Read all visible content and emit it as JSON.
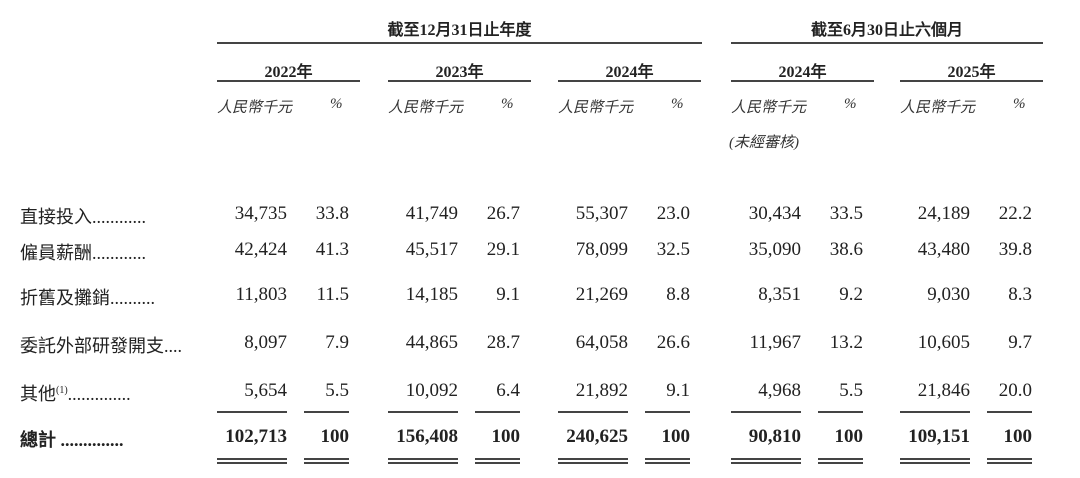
{
  "headers": {
    "group_annual": "截至12月31日止年度",
    "group_half": "截至6月30日止六個月",
    "years": [
      "2022年",
      "2023年",
      "2024年",
      "2024年",
      "2025年"
    ],
    "unit_rmb": "人民幣千元",
    "unit_pct": "%",
    "unaudited": "(未經審核)"
  },
  "rows": [
    {
      "label": "直接投入",
      "dots": "............",
      "values": [
        "34,735",
        "33.8",
        "41,749",
        "26.7",
        "55,307",
        "23.0",
        "30,434",
        "33.5",
        "24,189",
        "22.2"
      ]
    },
    {
      "label": "僱員薪酬",
      "dots": "............",
      "values": [
        "42,424",
        "41.3",
        "45,517",
        "29.1",
        "78,099",
        "32.5",
        "35,090",
        "38.6",
        "43,480",
        "39.8"
      ]
    },
    {
      "label": "折舊及攤銷",
      "dots": "..........",
      "values": [
        "11,803",
        "11.5",
        "14,185",
        "9.1",
        "21,269",
        "8.8",
        "8,351",
        "9.2",
        "9,030",
        "8.3"
      ]
    },
    {
      "label": "委託外部研發開支",
      "dots": "....",
      "values": [
        "8,097",
        "7.9",
        "44,865",
        "28.7",
        "64,058",
        "26.6",
        "11,967",
        "13.2",
        "10,605",
        "9.7"
      ]
    },
    {
      "label": "其他",
      "note": "(1)",
      "dots": "..............",
      "values": [
        "5,654",
        "5.5",
        "10,092",
        "6.4",
        "21,892",
        "9.1",
        "4,968",
        "5.5",
        "21,846",
        "20.0"
      ]
    }
  ],
  "total": {
    "label": "總計",
    "dots": " ..............",
    "values": [
      "102,713",
      "100",
      "156,408",
      "100",
      "240,625",
      "100",
      "90,810",
      "100",
      "109,151",
      "100"
    ]
  }
}
